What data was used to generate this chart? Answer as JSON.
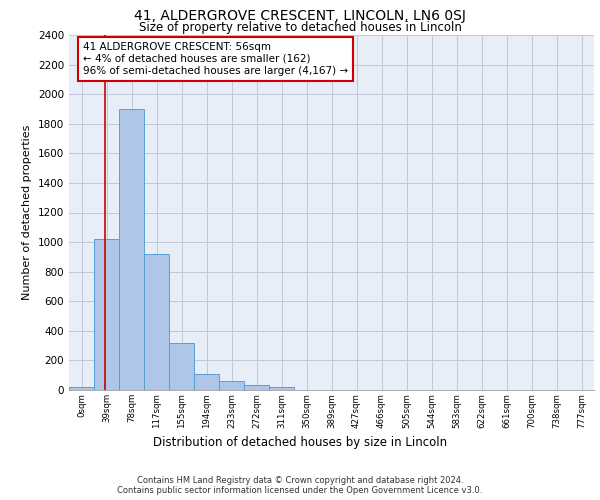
{
  "title_line1": "41, ALDERGROVE CRESCENT, LINCOLN, LN6 0SJ",
  "title_line2": "Size of property relative to detached houses in Lincoln",
  "xlabel": "Distribution of detached houses by size in Lincoln",
  "ylabel": "Number of detached properties",
  "bar_labels": [
    "0sqm",
    "39sqm",
    "78sqm",
    "117sqm",
    "155sqm",
    "194sqm",
    "233sqm",
    "272sqm",
    "311sqm",
    "350sqm",
    "389sqm",
    "427sqm",
    "466sqm",
    "505sqm",
    "544sqm",
    "583sqm",
    "622sqm",
    "661sqm",
    "700sqm",
    "738sqm",
    "777sqm"
  ],
  "bar_values": [
    20,
    1020,
    1900,
    920,
    315,
    110,
    58,
    35,
    20,
    0,
    0,
    0,
    0,
    0,
    0,
    0,
    0,
    0,
    0,
    0,
    0
  ],
  "bar_color": "#aec6e8",
  "bar_edge_color": "#5a9fd4",
  "grid_color": "#c0c8d8",
  "bg_color": "#e8eef8",
  "ylim": [
    0,
    2400
  ],
  "yticks": [
    0,
    200,
    400,
    600,
    800,
    1000,
    1200,
    1400,
    1600,
    1800,
    2000,
    2200,
    2400
  ],
  "property_line_x": 1.45,
  "annotation_text_line1": "41 ALDERGROVE CRESCENT: 56sqm",
  "annotation_text_line2": "← 4% of detached houses are smaller (162)",
  "annotation_text_line3": "96% of semi-detached houses are larger (4,167) →",
  "annotation_box_color": "#cc0000",
  "footer_line1": "Contains HM Land Registry data © Crown copyright and database right 2024.",
  "footer_line2": "Contains public sector information licensed under the Open Government Licence v3.0."
}
